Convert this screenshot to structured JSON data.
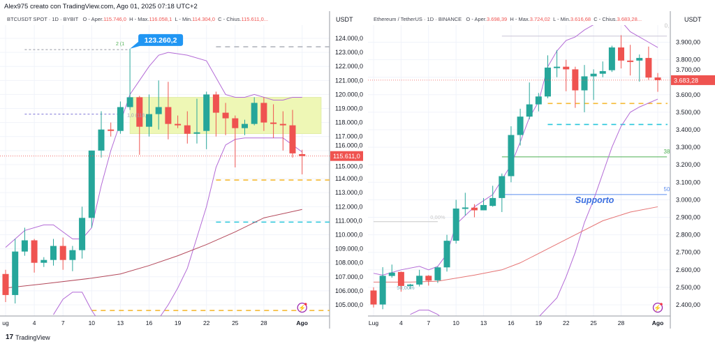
{
  "credit": "Alex975 creato con TradingView.com, Ago 01, 2025 07:18 UTC+2",
  "footer": {
    "logo_mark": "17",
    "brand": "TradingView"
  },
  "colors": {
    "up": "#26a69a",
    "down": "#ef5350",
    "bands": "#b36ad6",
    "ma": "#e57373",
    "zone": "#eef7b5",
    "accent": "#2962ff"
  },
  "charts": [
    {
      "symbol": "BTCUSDT SPOT · 1D · BYBIT",
      "o_label": "O - Aper.",
      "o": "115.746,0",
      "h_label": "H - Max.",
      "h": "116.058,1",
      "l_label": "L - Min.",
      "l": "114.304,0",
      "c_label": "C - Chius.",
      "c": "115.611,0...",
      "currency": "USDT",
      "last_price_label": "115.611,0",
      "high_callout": "123.260,2",
      "faint_labels": [
        "2 (1",
        "1,0 (118,"
      ],
      "price_ticks": [
        "124.000,0",
        "123.000,0",
        "122.000,0",
        "121.000,0",
        "120.000,0",
        "119.000,0",
        "118.000,0",
        "117.000,0",
        "116.000,0",
        "115.000,0",
        "114.000,0",
        "113.000,0",
        "112.000,0",
        "111.000,0",
        "110.000,0",
        "109.000,0",
        "108.000,0",
        "107.000,0",
        "106.000,0",
        "105.000,0"
      ],
      "date_ticks": [
        "ug",
        "4",
        "7",
        "10",
        "13",
        "16",
        "19",
        "22",
        "25",
        "28",
        "Ago"
      ],
      "chart_data": {
        "type": "candlestick",
        "x_unit": "day",
        "days": [
          1,
          2,
          3,
          4,
          5,
          6,
          7,
          8,
          9,
          10,
          11,
          12,
          13,
          14,
          15,
          16,
          17,
          18,
          19,
          20,
          21,
          22,
          23,
          24,
          25,
          26,
          27,
          28,
          29,
          30,
          31,
          32
        ],
        "ohlc": [
          [
            107200,
            107500,
            105200,
            105700
          ],
          [
            105700,
            109700,
            105100,
            108800
          ],
          [
            108800,
            110500,
            108500,
            109600
          ],
          [
            109600,
            109700,
            107300,
            108000
          ],
          [
            108000,
            108400,
            107700,
            108200
          ],
          [
            108200,
            109700,
            107800,
            109200
          ],
          [
            109200,
            109800,
            107500,
            108200
          ],
          [
            108200,
            109200,
            107400,
            108900
          ],
          [
            108900,
            112000,
            108300,
            111200
          ],
          [
            111200,
            116000,
            110500,
            116000
          ],
          [
            116000,
            118800,
            115500,
            117500
          ],
          [
            117500,
            118000,
            117000,
            117400
          ],
          [
            117400,
            119500,
            117200,
            119100
          ],
          [
            119100,
            123260,
            118900,
            119800
          ],
          [
            119800,
            119900,
            115700,
            117700
          ],
          [
            117700,
            120000,
            117000,
            118600
          ],
          [
            118600,
            121000,
            117500,
            119100
          ],
          [
            119100,
            120900,
            116800,
            117900
          ],
          [
            117900,
            118500,
            117600,
            117800
          ],
          [
            117800,
            118800,
            116500,
            117200
          ],
          [
            117200,
            119700,
            116500,
            117300
          ],
          [
            117400,
            120200,
            116100,
            120000
          ],
          [
            120000,
            120200,
            117000,
            118700
          ],
          [
            118700,
            119400,
            117100,
            118300
          ],
          [
            118300,
            118500,
            114800,
            117600
          ],
          [
            117600,
            118200,
            117100,
            117900
          ],
          [
            117900,
            119800,
            117800,
            119400
          ],
          [
            119400,
            119800,
            117400,
            118000
          ],
          [
            118000,
            119300,
            116900,
            117900
          ],
          [
            117900,
            118800,
            116000,
            117800
          ],
          [
            117800,
            118900,
            115500,
            115800
          ],
          [
            115746,
            116058,
            114304,
            115611
          ]
        ],
        "upper_band": [
          [
            1,
            109100
          ],
          [
            3,
            110300
          ],
          [
            5,
            110700
          ],
          [
            6,
            110700
          ],
          [
            8,
            109700
          ],
          [
            9,
            109700
          ],
          [
            10,
            110500
          ],
          [
            11,
            113500
          ],
          [
            12,
            116000
          ],
          [
            13,
            118000
          ],
          [
            14,
            120000
          ],
          [
            15,
            121000
          ],
          [
            16,
            122000
          ],
          [
            17,
            122800
          ],
          [
            18,
            123000
          ],
          [
            20,
            122800
          ],
          [
            22,
            122400
          ],
          [
            24,
            120000
          ],
          [
            25,
            119800
          ],
          [
            26,
            119800
          ],
          [
            27,
            120000
          ],
          [
            29,
            119600
          ],
          [
            30,
            119600
          ],
          [
            31,
            119800
          ],
          [
            32,
            119800
          ]
        ],
        "lower_band": [
          [
            6,
            104300
          ],
          [
            7,
            105400
          ],
          [
            8,
            105900
          ],
          [
            9,
            105900
          ],
          [
            10,
            104600
          ],
          [
            11,
            103600
          ],
          [
            16,
            103600
          ],
          [
            17,
            104000
          ],
          [
            18,
            105000
          ],
          [
            19,
            106200
          ],
          [
            20,
            107600
          ],
          [
            21,
            109800
          ],
          [
            22,
            112000
          ],
          [
            23,
            114800
          ],
          [
            24,
            116400
          ],
          [
            25,
            116800
          ],
          [
            26,
            116900
          ],
          [
            30,
            116900
          ],
          [
            31,
            116400
          ],
          [
            32,
            115900
          ]
        ],
        "moving_average": [
          [
            1,
            106200
          ],
          [
            5,
            106500
          ],
          [
            10,
            106900
          ],
          [
            13,
            107200
          ],
          [
            16,
            107800
          ],
          [
            19,
            108500
          ],
          [
            22,
            109300
          ],
          [
            25,
            110200
          ],
          [
            28,
            111200
          ],
          [
            32,
            111800
          ]
        ],
        "levels": [
          {
            "price": 123400,
            "from": 23,
            "color": "#b2b5be",
            "style": "dash"
          },
          {
            "price": 123200,
            "from": 3,
            "to": 14,
            "color": "#9598a1",
            "style": "dot"
          },
          {
            "price": 118600,
            "from": 3,
            "to": 13,
            "color": "#7e74d6",
            "style": "dot"
          },
          {
            "price": 113900,
            "from": 23,
            "color": "#f5b932",
            "style": "dash"
          },
          {
            "price": 110900,
            "from": 23,
            "color": "#26c6da",
            "style": "dash"
          },
          {
            "price": 104600,
            "from": 10,
            "color": "#f5b932",
            "style": "dash"
          }
        ],
        "zone": {
          "from": 14,
          "to": 34,
          "low": 117200,
          "high": 119800
        },
        "ylim": [
          104200,
          124900
        ]
      }
    },
    {
      "symbol": "Ethereum / TetherUS · 1D · BINANCE",
      "o_label": "O - Aper.",
      "o": "3.698,39",
      "h_label": "H - Max.",
      "h": "3.724,02",
      "l_label": "L - Min.",
      "l": "3.616,68",
      "c_label": "C - Chius.",
      "c": "3.683,28...",
      "currency": "USDT",
      "last_price_label": "3.683,28",
      "support_label": "Supporto",
      "fib_labels": [
        "0,",
        "38",
        "50",
        "0,00%",
        "50,00%"
      ],
      "price_ticks": [
        "3.900,00",
        "3.800,00",
        "3.700,00",
        "3.600,00",
        "3.500,00",
        "3.400,00",
        "3.300,00",
        "3.200,00",
        "3.100,00",
        "3.000,00",
        "2.900,00",
        "2.800,00",
        "2.700,00",
        "2.600,00",
        "2.500,00",
        "2.400,00"
      ],
      "date_ticks": [
        "Lug",
        "4",
        "7",
        "10",
        "13",
        "16",
        "19",
        "22",
        "25",
        "28",
        "Ago"
      ],
      "chart_data": {
        "type": "candlestick",
        "x_unit": "day",
        "days": [
          1,
          2,
          3,
          4,
          5,
          6,
          7,
          8,
          9,
          10,
          11,
          12,
          13,
          14,
          15,
          16,
          17,
          18,
          19,
          20,
          21,
          22,
          23,
          24,
          25,
          26,
          27,
          28,
          29,
          30,
          31,
          32
        ],
        "ohlc": [
          [
            2482,
            2500,
            2385,
            2402
          ],
          [
            2402,
            2615,
            2375,
            2566
          ],
          [
            2565,
            2630,
            2555,
            2584
          ],
          [
            2588,
            2590,
            2475,
            2508
          ],
          [
            2508,
            2520,
            2490,
            2516
          ],
          [
            2516,
            2600,
            2505,
            2566
          ],
          [
            2566,
            2570,
            2510,
            2538
          ],
          [
            2540,
            2620,
            2525,
            2614
          ],
          [
            2614,
            2800,
            2590,
            2766
          ],
          [
            2766,
            3000,
            2750,
            2950
          ],
          [
            2950,
            3040,
            2910,
            2956
          ],
          [
            2955,
            2975,
            2900,
            2940
          ],
          [
            2940,
            3010,
            2940,
            2970
          ],
          [
            2965,
            3080,
            2960,
            3010
          ],
          [
            3010,
            3150,
            2930,
            3135
          ],
          [
            3135,
            3420,
            3100,
            3370
          ],
          [
            3370,
            3520,
            3310,
            3475
          ],
          [
            3475,
            3670,
            3460,
            3545
          ],
          [
            3545,
            3610,
            3505,
            3590
          ],
          [
            3590,
            3825,
            3580,
            3755
          ],
          [
            3755,
            3855,
            3700,
            3760
          ],
          [
            3760,
            3800,
            3620,
            3745
          ],
          [
            3745,
            3760,
            3525,
            3625
          ],
          [
            3625,
            3770,
            3500,
            3705
          ],
          [
            3705,
            3745,
            3570,
            3720
          ],
          [
            3720,
            3790,
            3700,
            3735
          ],
          [
            3740,
            3880,
            3730,
            3870
          ],
          [
            3870,
            3940,
            3750,
            3795
          ],
          [
            3795,
            3885,
            3710,
            3792
          ],
          [
            3795,
            3830,
            3675,
            3810
          ],
          [
            3810,
            3875,
            3685,
            3698
          ],
          [
            3698.39,
            3724.02,
            3616.68,
            3683.28
          ]
        ],
        "upper_band": [
          [
            1,
            2580
          ],
          [
            2,
            2570
          ],
          [
            4,
            2600
          ],
          [
            6,
            2620
          ],
          [
            7,
            2600
          ],
          [
            8,
            2620
          ],
          [
            9,
            2690
          ],
          [
            10,
            2860
          ],
          [
            12,
            2960
          ],
          [
            14,
            3030
          ],
          [
            16,
            3200
          ],
          [
            17,
            3330
          ],
          [
            18,
            3470
          ],
          [
            19,
            3560
          ],
          [
            20,
            3760
          ],
          [
            21,
            3850
          ],
          [
            22,
            3910
          ],
          [
            23,
            3930
          ],
          [
            24,
            3970
          ],
          [
            25,
            4000
          ],
          [
            26,
            4030
          ],
          [
            28,
            4020
          ],
          [
            29,
            3960
          ],
          [
            31,
            3900
          ],
          [
            32,
            3870
          ]
        ],
        "lower_band": [
          [
            5,
            2345
          ],
          [
            6,
            2370
          ],
          [
            7,
            2370
          ],
          [
            8,
            2345
          ],
          [
            9,
            2300
          ],
          [
            18,
            2300
          ],
          [
            19,
            2330
          ],
          [
            21,
            2440
          ],
          [
            22,
            2560
          ],
          [
            23,
            2700
          ],
          [
            24,
            2870
          ],
          [
            25,
            3000
          ],
          [
            26,
            3150
          ],
          [
            27,
            3300
          ],
          [
            28,
            3420
          ],
          [
            29,
            3500
          ],
          [
            30,
            3530
          ],
          [
            32,
            3575
          ]
        ],
        "moving_average": [
          [
            1,
            2530
          ],
          [
            5,
            2530
          ],
          [
            8,
            2535
          ],
          [
            12,
            2570
          ],
          [
            15,
            2600
          ],
          [
            17,
            2640
          ],
          [
            20,
            2720
          ],
          [
            23,
            2800
          ],
          [
            26,
            2880
          ],
          [
            29,
            2930
          ],
          [
            32,
            2960
          ]
        ],
        "levels": [
          {
            "price": 3935,
            "from": 15,
            "to": 33,
            "color": "#c9c3d6",
            "style": "solid"
          },
          {
            "price": 3550,
            "from": 20,
            "to": 34,
            "color": "#f5b932",
            "style": "dash"
          },
          {
            "price": 3430,
            "from": 20,
            "to": 34,
            "color": "#26c6da",
            "style": "dash"
          },
          {
            "price": 3245,
            "from": 15,
            "to": 33,
            "color": "#4caf50",
            "style": "solid"
          },
          {
            "price": 3030,
            "from": 15,
            "to": 33,
            "color": "#5b8def",
            "style": "solid"
          },
          {
            "price": 2875,
            "from": 1,
            "to": 8,
            "color": "#c8c8c8",
            "style": "solid"
          }
        ],
        "ylim": [
          2340,
          4030
        ]
      }
    }
  ]
}
